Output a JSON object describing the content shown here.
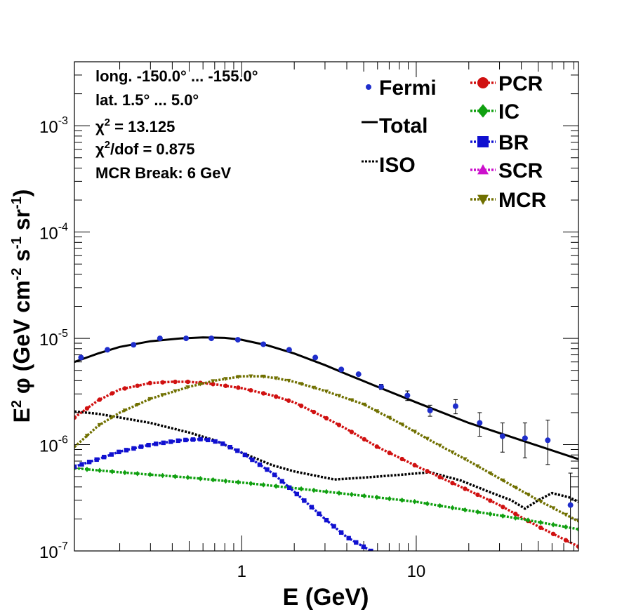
{
  "chart_data": {
    "type": "line",
    "xlabel": "E (GeV)",
    "ylabel": "E² φ (GeV cm⁻² s⁻¹ sr⁻¹)",
    "ylabel_parts": [
      "E",
      "2",
      " φ (GeV cm",
      "-2",
      " s",
      "-1",
      " sr",
      "-1",
      ")"
    ],
    "xscale": "log",
    "yscale": "log",
    "xlim": [
      0.11,
      85
    ],
    "ylim": [
      1e-07,
      0.004
    ],
    "xtick_labels": [
      {
        "value": 1,
        "label": "1"
      },
      {
        "value": 10,
        "label": "10"
      }
    ],
    "ytick_labels": [
      {
        "value": 1e-07,
        "base": "10",
        "exp": "-7"
      },
      {
        "value": 1e-06,
        "base": "10",
        "exp": "-6"
      },
      {
        "value": 1e-05,
        "base": "10",
        "exp": "-5"
      },
      {
        "value": 0.0001,
        "base": "10",
        "exp": "-4"
      },
      {
        "value": 0.001,
        "base": "10",
        "exp": "-3"
      }
    ],
    "info_lines": [
      {
        "text": "long. -150.0° ... -155.0°"
      },
      {
        "text": "lat. 1.5° ... 5.0°"
      },
      {
        "pre": "χ",
        "sup": "2",
        "post": " = 13.125"
      },
      {
        "pre": "χ",
        "sup": "2",
        "post": "/dof = 0.875"
      },
      {
        "text": "MCR Break:  6 GeV"
      }
    ],
    "legend_left": [
      {
        "label": "Fermi",
        "series": "Fermi"
      },
      {
        "label": "Total",
        "series": "Total"
      },
      {
        "label": "ISO",
        "series": "ISO"
      }
    ],
    "legend_right": [
      {
        "label": "PCR",
        "series": "PCR"
      },
      {
        "label": "IC",
        "series": "IC"
      },
      {
        "label": "BR",
        "series": "BR"
      },
      {
        "label": "SCR",
        "series": "SCR"
      },
      {
        "label": "MCR",
        "series": "MCR"
      }
    ],
    "data_points": {
      "name": "Fermi",
      "color": "#1f2ecc",
      "x": [
        0.12,
        0.17,
        0.24,
        0.34,
        0.48,
        0.67,
        0.95,
        1.33,
        1.87,
        2.64,
        3.72,
        4.67,
        6.3,
        8.9,
        12.0,
        16.8,
        23.1,
        31.2,
        42.0,
        56.7,
        76.5
      ],
      "y": [
        6.6e-06,
        7.8e-06,
        8.7e-06,
        1e-05,
        1e-05,
        1e-05,
        9.7e-06,
        8.8e-06,
        7.8e-06,
        6.6e-06,
        5.1e-06,
        4.6e-06,
        3.5e-06,
        2.9e-06,
        2.1e-06,
        2.3e-06,
        1.6e-06,
        1.2e-06,
        1.15e-06,
        1.1e-06,
        2.7e-07
      ],
      "err_lo": [
        0,
        0,
        0,
        0,
        0,
        0,
        0,
        0,
        0,
        0,
        0,
        0,
        2e-07,
        3e-07,
        2.5e-07,
        3.5e-07,
        4e-07,
        3.5e-07,
        4e-07,
        4.5e-07,
        1.5e-07
      ],
      "err_hi": [
        0,
        0,
        0,
        0,
        0,
        0,
        0,
        0,
        0,
        0,
        0,
        0,
        2e-07,
        3e-07,
        2.5e-07,
        3.5e-07,
        4e-07,
        4e-07,
        4.5e-07,
        6e-07,
        2.7e-07
      ]
    },
    "series": [
      {
        "name": "Total",
        "color": "#000000",
        "style": "solid",
        "marker": "none",
        "x": [
          0.11,
          0.15,
          0.2,
          0.3,
          0.45,
          0.6,
          0.8,
          1.0,
          1.4,
          2.0,
          3.0,
          4.0,
          6.0,
          10,
          20,
          40,
          85
        ],
        "y": [
          6e-06,
          7.2e-06,
          8.3e-06,
          9.4e-06,
          1e-05,
          1.02e-05,
          1.01e-05,
          9.7e-06,
          8.6e-06,
          7.2e-06,
          5.6e-06,
          4.6e-06,
          3.5e-06,
          2.5e-06,
          1.6e-06,
          1.1e-06,
          7.3e-07
        ]
      },
      {
        "name": "ISO",
        "color": "#000000",
        "style": "dotted",
        "marker": "none",
        "x": [
          0.11,
          0.15,
          0.2,
          0.3,
          0.5,
          0.7,
          1.0,
          1.5,
          2.0,
          3.4,
          5.0,
          8.0,
          12,
          18,
          25,
          30,
          35,
          42,
          50,
          60,
          75,
          85
        ],
        "y": [
          2.05e-06,
          1.95e-06,
          1.8e-06,
          1.6e-06,
          1.3e-06,
          1.1e-06,
          8.4e-07,
          6.4e-07,
          5.6e-07,
          4.7e-07,
          4.9e-07,
          5.2e-07,
          5.5e-07,
          4.6e-07,
          3.7e-07,
          3.3e-07,
          3e-07,
          2.5e-07,
          3e-07,
          3.5e-07,
          3.2e-07,
          2.9e-07
        ]
      },
      {
        "name": "PCR",
        "color": "#d01010",
        "style": "dotted",
        "marker": "circle",
        "x": [
          0.11,
          0.15,
          0.2,
          0.3,
          0.4,
          0.5,
          0.7,
          1.0,
          1.5,
          2.0,
          3.0,
          4.0,
          6.0,
          10,
          15,
          20,
          30,
          50,
          85
        ],
        "y": [
          1.8e-06,
          2.6e-06,
          3.3e-06,
          3.8e-06,
          3.9e-06,
          3.9e-06,
          3.7e-06,
          3.4e-06,
          2.9e-06,
          2.5e-06,
          1.8e-06,
          1.4e-06,
          9.5e-07,
          6.3e-07,
          4.6e-07,
          3.7e-07,
          2.7e-07,
          1.7e-07,
          1.1e-07
        ]
      },
      {
        "name": "IC",
        "color": "#10a010",
        "style": "dotted",
        "marker": "diamond",
        "x": [
          0.11,
          0.2,
          0.5,
          1.0,
          2.0,
          5.0,
          10,
          20,
          40,
          85
        ],
        "y": [
          6e-07,
          5.5e-07,
          4.9e-07,
          4.4e-07,
          3.9e-07,
          3.3e-07,
          2.9e-07,
          2.4e-07,
          2e-07,
          1.6e-07
        ]
      },
      {
        "name": "BR",
        "color": "#1010d0",
        "style": "dotted",
        "marker": "square",
        "x": [
          0.11,
          0.15,
          0.2,
          0.3,
          0.45,
          0.6,
          0.75,
          1.0,
          1.5,
          2.0,
          3.0,
          4.0,
          5.5
        ],
        "y": [
          6.2e-07,
          7.3e-07,
          8.6e-07,
          1e-06,
          1.1e-06,
          1.13e-06,
          1.05e-06,
          8.4e-07,
          5.4e-07,
          3.6e-07,
          2e-07,
          1.35e-07,
          1e-07
        ]
      },
      {
        "name": "SCR",
        "color": "#cc10cc",
        "style": "dotted",
        "marker": "triangle-up",
        "x": [],
        "y": []
      },
      {
        "name": "MCR",
        "color": "#707000",
        "style": "dotted",
        "marker": "triangle-down",
        "x": [
          0.11,
          0.15,
          0.2,
          0.3,
          0.5,
          0.7,
          1.0,
          1.3,
          1.6,
          2.0,
          3.0,
          5.0,
          8.0,
          12,
          20,
          30,
          50,
          85
        ],
        "y": [
          9.5e-07,
          1.5e-06,
          2e-06,
          2.7e-06,
          3.5e-06,
          4e-06,
          4.4e-06,
          4.4e-06,
          4.2e-06,
          3.9e-06,
          3.2e-06,
          2.4e-06,
          1.6e-06,
          1.1e-06,
          7e-07,
          4.8e-07,
          3e-07,
          1.9e-07
        ]
      }
    ]
  }
}
